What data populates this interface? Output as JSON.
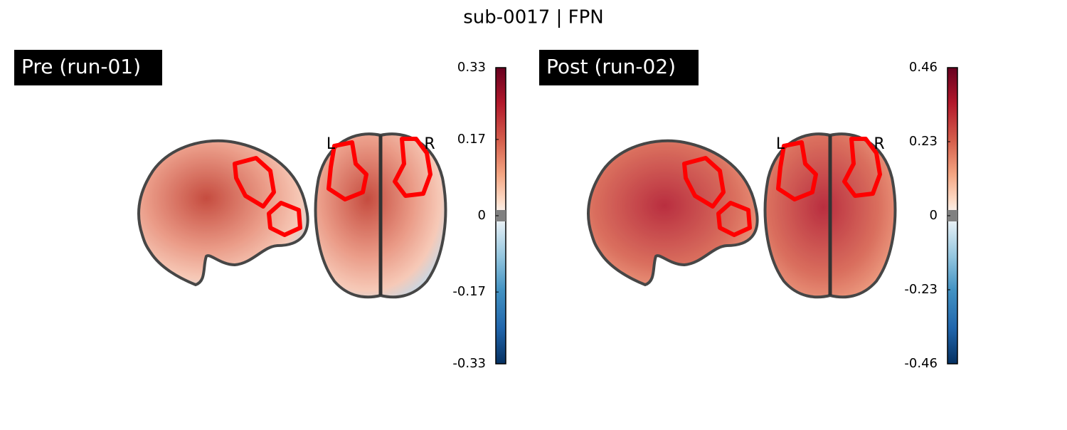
{
  "title": "sub-0017 | FPN",
  "panels": [
    {
      "label": "Pre (run-01)",
      "orientation_labels": [
        "L",
        "R"
      ],
      "colorbar": {
        "lim": [
          -0.33,
          0.33
        ],
        "ticks": [
          0.33,
          0.17,
          0,
          -0.17,
          -0.33
        ]
      }
    },
    {
      "label": "Post (run-02)",
      "orientation_labels": [
        "L",
        "R"
      ],
      "colorbar": {
        "lim": [
          -0.46,
          0.46
        ],
        "ticks": [
          0.46,
          0.23,
          0,
          -0.23,
          -0.46
        ]
      }
    }
  ]
}
